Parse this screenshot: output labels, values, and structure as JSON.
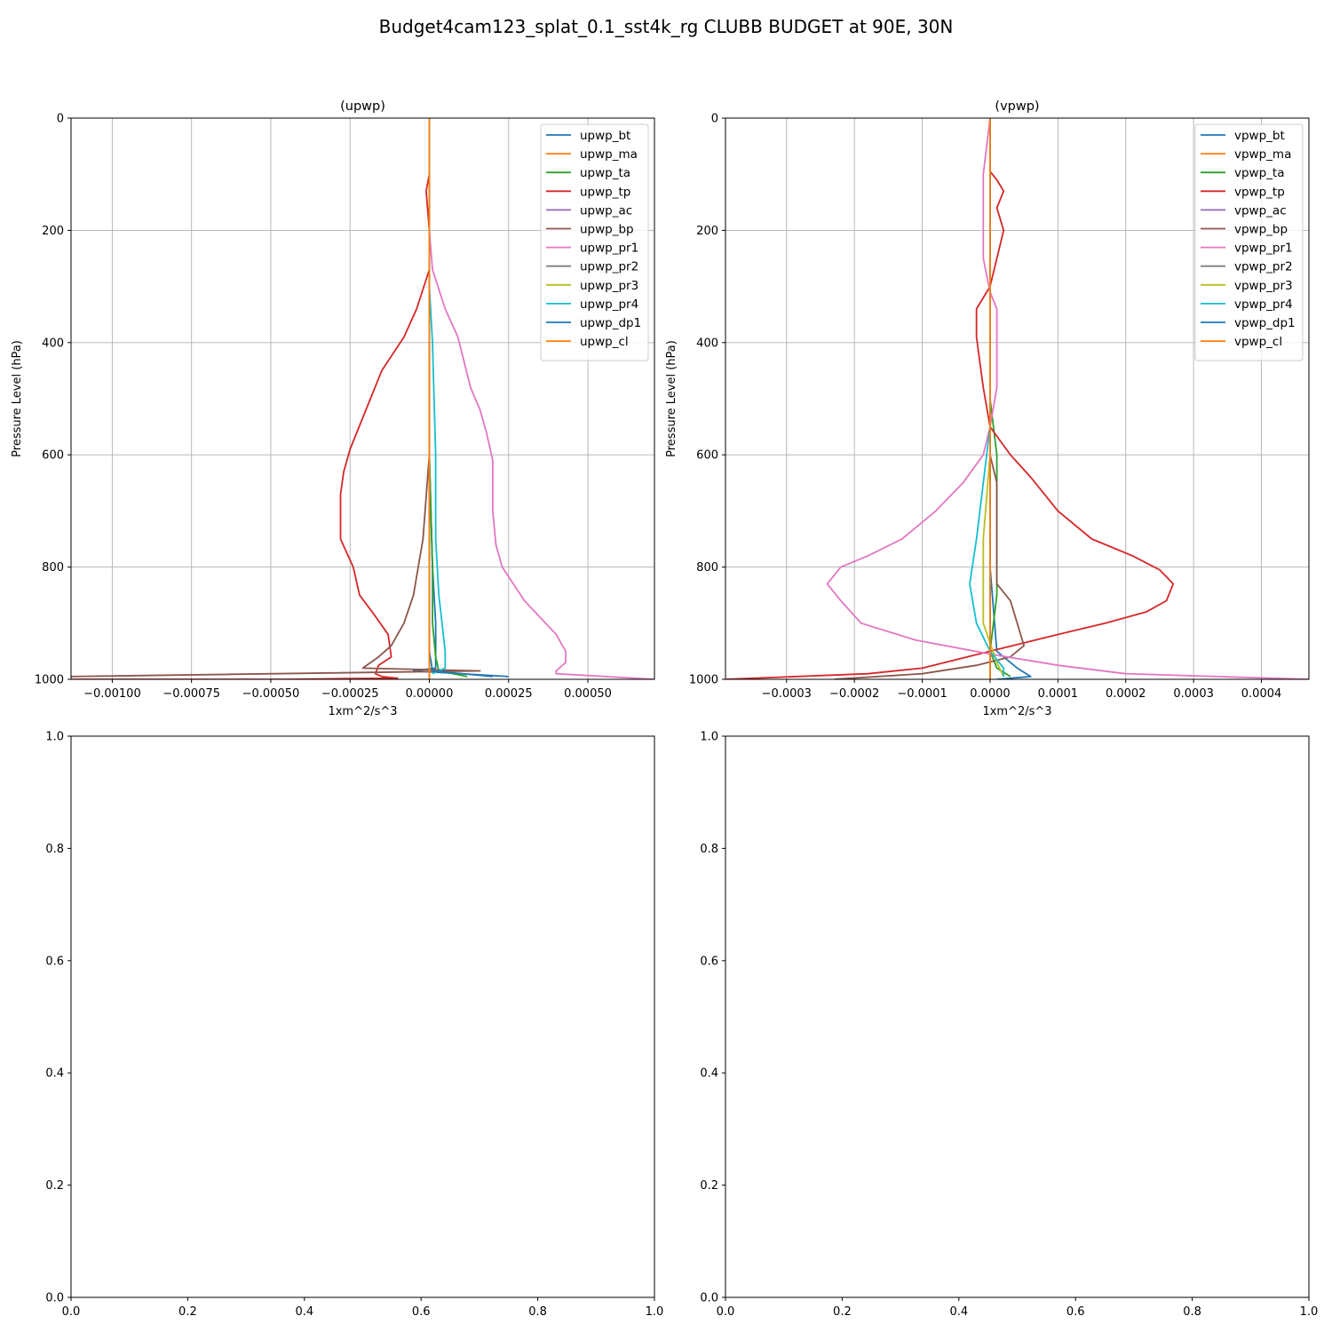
{
  "figure": {
    "title": "Budget4cam123_splat_0.1_sst4k_rg CLUBB BUDGET at 90E, 30N"
  },
  "colors": {
    "palette": [
      "#1f77b4",
      "#ff7f0e",
      "#2ca02c",
      "#d62728",
      "#9467bd",
      "#8c564b",
      "#e377c2",
      "#7f7f7f",
      "#bcbd22",
      "#17becf",
      "#1f77b4",
      "#ff7f0e"
    ]
  },
  "chart_data": [
    {
      "type": "line",
      "panel": "top-left",
      "title": "(upwp)",
      "xlabel": "1xm^2/s^3",
      "ylabel": "Pressure Level (hPa)",
      "xlim": [
        -0.00113,
        0.00071
      ],
      "ylim": [
        1000,
        0
      ],
      "xticks": [
        -0.001,
        -0.00075,
        -0.0005,
        -0.00025,
        0,
        0.00025,
        0.0005
      ],
      "xtick_labels": [
        "−0.00100",
        "−0.00075",
        "−0.00050",
        "−0.00025",
        "0.00000",
        "0.00025",
        "0.00050"
      ],
      "yticks": [
        0,
        200,
        400,
        600,
        800,
        1000
      ],
      "ytick_labels": [
        "0",
        "200",
        "400",
        "600",
        "800",
        "1000"
      ],
      "grid": true,
      "legend": "top-right",
      "series": [
        {
          "name": "upwp_bt",
          "x": [
            0.0,
            0.0,
            0.0,
            0.0,
            1e-05,
            2e-05,
            2e-05,
            2e-05,
            -5e-05,
            0.00025
          ],
          "y": [
            0,
            200,
            400,
            600,
            800,
            900,
            970,
            980,
            985,
            995
          ]
        },
        {
          "name": "upwp_ma",
          "x": [
            0.0,
            0.0,
            0.0,
            0.0,
            0.0,
            0.0,
            0.0
          ],
          "y": [
            0,
            200,
            400,
            600,
            800,
            980,
            1000
          ]
        },
        {
          "name": "upwp_ta",
          "x": [
            0.0,
            0.0,
            0.0,
            1e-05,
            1e-05,
            2e-05,
            3e-05,
            0.00012
          ],
          "y": [
            0,
            300,
            600,
            800,
            900,
            960,
            985,
            995
          ]
        },
        {
          "name": "upwp_tp",
          "x": [
            0.0,
            0.0,
            -1e-05,
            0.0,
            0.0,
            -4e-05,
            -8e-05,
            -0.00015,
            -0.0002,
            -0.00025,
            -0.00027,
            -0.00028,
            -0.00028,
            -0.00024,
            -0.00022,
            -0.00018,
            -0.00013,
            -0.00012,
            -0.00016,
            -0.00017,
            -0.00015,
            -0.0001,
            -0.0003,
            -0.00045,
            -0.00113
          ],
          "y": [
            0,
            100,
            130,
            200,
            270,
            340,
            390,
            450,
            520,
            590,
            630,
            670,
            750,
            800,
            850,
            880,
            920,
            960,
            975,
            990,
            995,
            998,
            999,
            1000,
            1000
          ]
        },
        {
          "name": "upwp_ac",
          "x": [
            0.0,
            0.0,
            0.0,
            0.0
          ],
          "y": [
            0,
            500,
            900,
            1000
          ]
        },
        {
          "name": "upwp_bp",
          "x": [
            0.0,
            0.0,
            0.0,
            -2e-05,
            -5e-05,
            -8e-05,
            -0.00012,
            -0.00016,
            -0.00021,
            0.00016,
            -0.00113
          ],
          "y": [
            0,
            300,
            600,
            750,
            850,
            900,
            940,
            960,
            980,
            985,
            995
          ]
        },
        {
          "name": "upwp_pr1",
          "x": [
            0.0,
            0.0,
            1e-05,
            5e-05,
            9e-05,
            0.00013,
            0.00016,
            0.00018,
            0.0002,
            0.0002,
            0.00021,
            0.00023,
            0.0003,
            0.0004,
            0.00043,
            0.00043,
            0.0004,
            0.0004,
            0.00071
          ],
          "y": [
            0,
            200,
            270,
            340,
            390,
            480,
            520,
            560,
            610,
            700,
            760,
            800,
            860,
            920,
            950,
            970,
            985,
            990,
            1000
          ]
        },
        {
          "name": "upwp_pr2",
          "x": [
            0.0,
            0.0,
            0.0,
            0.0
          ],
          "y": [
            0,
            400,
            800,
            1000
          ]
        },
        {
          "name": "upwp_pr3",
          "x": [
            0.0,
            0.0,
            0.0,
            0.0,
            0.0,
            0.0
          ],
          "y": [
            0,
            300,
            600,
            800,
            950,
            1000
          ]
        },
        {
          "name": "upwp_pr4",
          "x": [
            0.0,
            0.0,
            1e-05,
            2e-05,
            2e-05,
            3e-05,
            4e-05,
            5e-05,
            5e-05,
            1e-05
          ],
          "y": [
            0,
            300,
            400,
            600,
            750,
            850,
            900,
            950,
            980,
            990
          ]
        },
        {
          "name": "upwp_dp1",
          "x": [
            0.0,
            0.0,
            0.0,
            0.0,
            1e-05,
            0.0002
          ],
          "y": [
            0,
            400,
            800,
            950,
            985,
            995
          ]
        },
        {
          "name": "upwp_cl",
          "x": [
            0.0,
            0.0,
            0.0,
            0.0
          ],
          "y": [
            0,
            400,
            800,
            1000
          ]
        }
      ]
    },
    {
      "type": "line",
      "panel": "top-right",
      "title": "(vpwp)",
      "xlabel": "1xm^2/s^3",
      "ylabel": "Pressure Level (hPa)",
      "xlim": [
        -0.00039,
        0.00047
      ],
      "ylim": [
        1000,
        0
      ],
      "xticks": [
        -0.0003,
        -0.0002,
        -0.0001,
        0,
        0.0001,
        0.0002,
        0.0003,
        0.0004
      ],
      "xtick_labels": [
        "−0.0003",
        "−0.0002",
        "−0.0001",
        "0.0000",
        "0.0001",
        "0.0002",
        "0.0003",
        "0.0004"
      ],
      "yticks": [
        0,
        200,
        400,
        600,
        800,
        1000
      ],
      "ytick_labels": [
        "0",
        "200",
        "400",
        "600",
        "800",
        "1000"
      ],
      "grid": true,
      "legend": "top-right",
      "series": [
        {
          "name": "vpwp_bt",
          "x": [
            0.0,
            0.0,
            0.0,
            1e-05,
            4e-05,
            6e-05,
            1e-05
          ],
          "y": [
            0,
            400,
            800,
            950,
            980,
            995,
            1000
          ]
        },
        {
          "name": "vpwp_ma",
          "x": [
            0.0,
            0.0,
            0.0,
            0.0
          ],
          "y": [
            0,
            400,
            800,
            1000
          ]
        },
        {
          "name": "vpwp_ta",
          "x": [
            0.0,
            0.0,
            0.0,
            1e-05,
            1e-05,
            1e-05,
            0.0,
            1e-05,
            3e-05
          ],
          "y": [
            0,
            300,
            500,
            600,
            700,
            850,
            950,
            980,
            995
          ]
        },
        {
          "name": "vpwp_tp",
          "x": [
            0.0,
            0.0,
            1e-05,
            2e-05,
            1e-05,
            2e-05,
            1e-05,
            0.0,
            -2e-05,
            -2e-05,
            -1e-05,
            0.0,
            3e-05,
            6e-05,
            0.0001,
            0.00015,
            0.00021,
            0.00025,
            0.00027,
            0.00026,
            0.00023,
            0.00017,
            0.0001,
            0.0,
            -0.0001,
            -0.00018,
            -0.00039
          ],
          "y": [
            0,
            95,
            110,
            130,
            160,
            200,
            250,
            300,
            340,
            390,
            480,
            550,
            600,
            640,
            700,
            750,
            780,
            805,
            830,
            860,
            880,
            900,
            920,
            950,
            980,
            990,
            1000
          ]
        },
        {
          "name": "vpwp_ac",
          "x": [
            0.0,
            0.0,
            0.0,
            0.0
          ],
          "y": [
            0,
            500,
            900,
            1000
          ]
        },
        {
          "name": "vpwp_bp",
          "x": [
            0.0,
            0.0,
            0.0,
            1e-05,
            1e-05,
            1e-05,
            3e-05,
            4e-05,
            5e-05,
            3e-05,
            -2e-05,
            -0.0001,
            -0.00023
          ],
          "y": [
            0,
            400,
            600,
            650,
            720,
            830,
            860,
            900,
            940,
            960,
            975,
            990,
            1000
          ]
        },
        {
          "name": "vpwp_pr1",
          "x": [
            0.0,
            -1e-05,
            -1e-05,
            -1e-05,
            -1e-05,
            0.0,
            1e-05,
            1e-05,
            1e-05,
            0.0,
            -1e-05,
            -4e-05,
            -8e-05,
            -0.00013,
            -0.00018,
            -0.00022,
            -0.00024,
            -0.00022,
            -0.00019,
            -0.00011,
            0.0,
            0.0001,
            0.0002,
            0.00047
          ],
          "y": [
            0,
            100,
            130,
            180,
            250,
            310,
            340,
            400,
            480,
            550,
            600,
            650,
            700,
            750,
            780,
            800,
            830,
            860,
            900,
            930,
            955,
            975,
            990,
            1000
          ]
        },
        {
          "name": "vpwp_pr2",
          "x": [
            0.0,
            0.0,
            0.0,
            0.0
          ],
          "y": [
            0,
            400,
            800,
            1000
          ]
        },
        {
          "name": "vpwp_pr3",
          "x": [
            0.0,
            0.0,
            0.0,
            -1e-05,
            -1e-05,
            1e-05,
            2e-05
          ],
          "y": [
            0,
            400,
            600,
            750,
            900,
            970,
            995
          ]
        },
        {
          "name": "vpwp_pr4",
          "x": [
            0.0,
            0.0,
            0.0,
            -1e-05,
            -2e-05,
            -3e-05,
            -2e-05,
            0.0,
            2e-05,
            2e-05
          ],
          "y": [
            0,
            400,
            550,
            650,
            750,
            830,
            900,
            950,
            980,
            995
          ]
        },
        {
          "name": "vpwp_dp1",
          "x": [
            0.0,
            0.0,
            0.0,
            0.0
          ],
          "y": [
            0,
            500,
            900,
            1000
          ]
        },
        {
          "name": "vpwp_cl",
          "x": [
            0.0,
            0.0,
            0.0,
            0.0
          ],
          "y": [
            0,
            400,
            800,
            1000
          ]
        }
      ]
    },
    {
      "type": "line",
      "panel": "bottom-left",
      "title": "",
      "xlim": [
        0,
        1
      ],
      "ylim": [
        0,
        1
      ],
      "xticks": [
        0,
        0.2,
        0.4,
        0.6,
        0.8,
        1
      ],
      "xtick_labels": [
        "0.0",
        "0.2",
        "0.4",
        "0.6",
        "0.8",
        "1.0"
      ],
      "yticks": [
        0,
        0.2,
        0.4,
        0.6,
        0.8,
        1
      ],
      "ytick_labels": [
        "0.0",
        "0.2",
        "0.4",
        "0.6",
        "0.8",
        "1.0"
      ],
      "grid": false,
      "series": []
    },
    {
      "type": "line",
      "panel": "bottom-right",
      "title": "",
      "xlim": [
        0,
        1
      ],
      "ylim": [
        0,
        1
      ],
      "xticks": [
        0,
        0.2,
        0.4,
        0.6,
        0.8,
        1
      ],
      "xtick_labels": [
        "0.0",
        "0.2",
        "0.4",
        "0.6",
        "0.8",
        "1.0"
      ],
      "yticks": [
        0,
        0.2,
        0.4,
        0.6,
        0.8,
        1
      ],
      "ytick_labels": [
        "0.0",
        "0.2",
        "0.4",
        "0.6",
        "0.8",
        "1.0"
      ],
      "grid": false,
      "series": []
    }
  ]
}
